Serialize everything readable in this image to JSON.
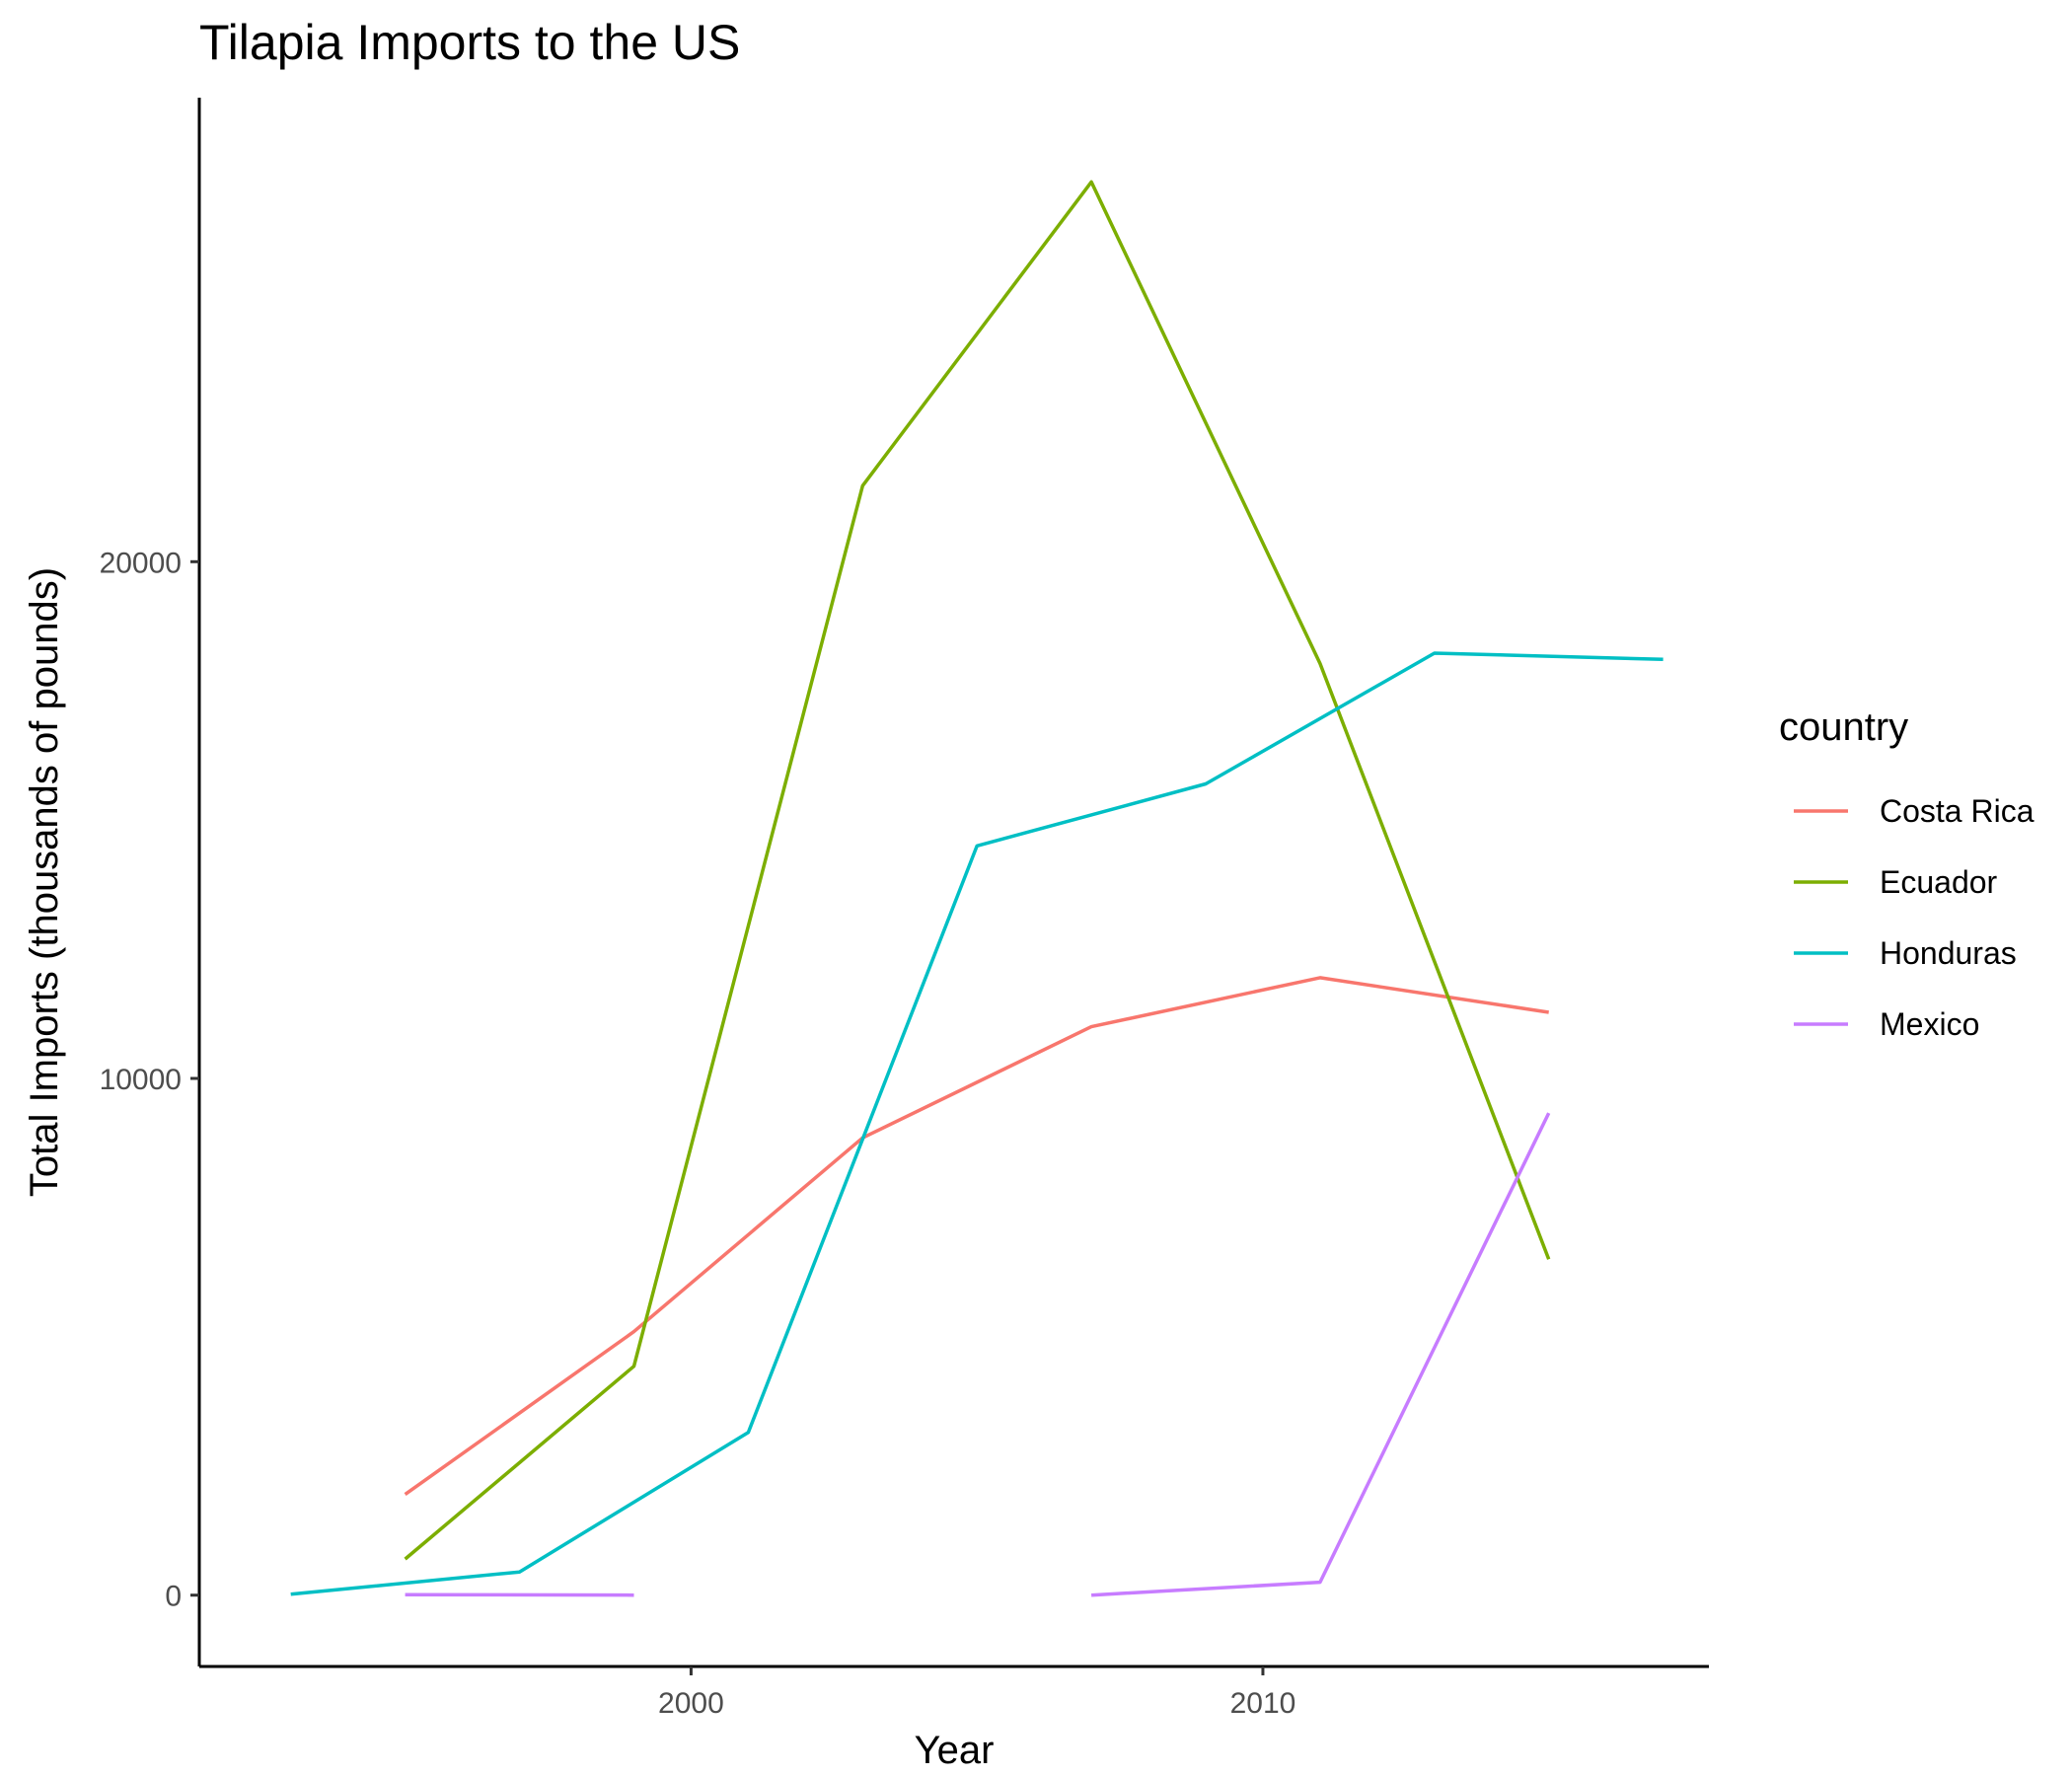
{
  "chart_data": {
    "type": "line",
    "title": "Tilapia Imports to the US",
    "xlabel": "Year",
    "ylabel": "Total Imports (thousands of pounds)",
    "xlim": [
      1991.4,
      2017.8
    ],
    "ylim": [
      -1380,
      28980
    ],
    "x_ticks": [
      2000,
      2010
    ],
    "y_ticks": [
      0,
      10000,
      20000
    ],
    "grid": false,
    "legend": {
      "title": "country",
      "position": "right"
    },
    "series": [
      {
        "name": "Costa Rica",
        "color": "#F8766D",
        "points": [
          [
            1995,
            1950
          ],
          [
            1999,
            5100
          ],
          [
            2003,
            8850
          ],
          [
            2007,
            11000
          ],
          [
            2011,
            11950
          ],
          [
            2015,
            11280
          ]
        ]
      },
      {
        "name": "Ecuador",
        "color": "#7CAE00",
        "points": [
          [
            1995,
            700
          ],
          [
            1999,
            4430
          ],
          [
            2003,
            21470
          ],
          [
            2007,
            27350
          ],
          [
            2011,
            18030
          ],
          [
            2015,
            6500
          ]
        ]
      },
      {
        "name": "Honduras",
        "color": "#00BFC4",
        "points": [
          [
            1993,
            20
          ],
          [
            1997,
            450
          ],
          [
            2001,
            3150
          ],
          [
            2005,
            14500
          ],
          [
            2009,
            15700
          ],
          [
            2013,
            18230
          ],
          [
            2017,
            18110
          ]
        ]
      },
      {
        "name": "Mexico",
        "color": "#C77CFF",
        "segments": [
          [
            [
              1995,
              10
            ],
            [
              1999,
              0
            ]
          ],
          [
            [
              2007,
              0
            ],
            [
              2011,
              250
            ],
            [
              2015,
              9330
            ]
          ]
        ]
      }
    ]
  }
}
